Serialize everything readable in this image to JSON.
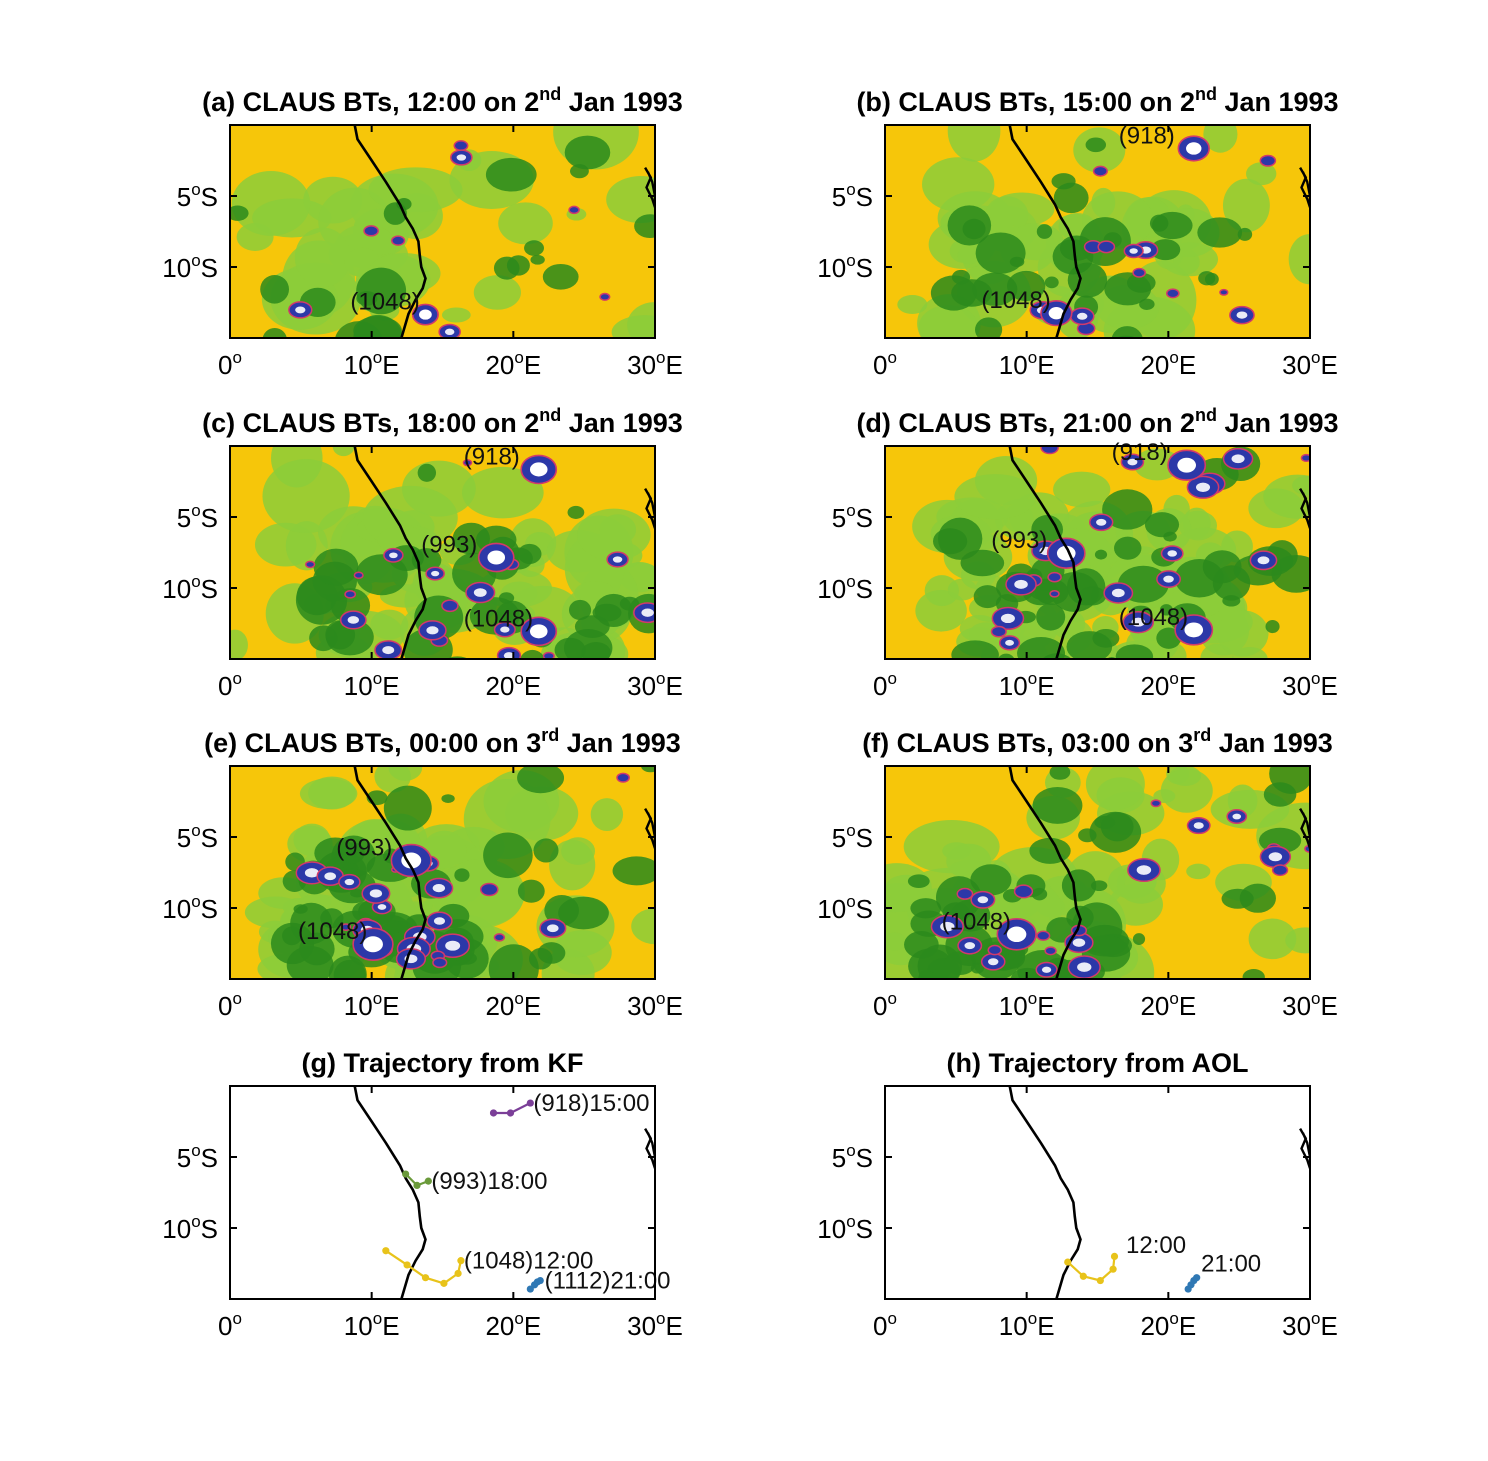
{
  "figure": {
    "panels": [
      {
        "id": "a",
        "title_pre": "(a) CLAUS BTs, 12:00 on 2",
        "title_sup": "nd",
        "title_post": " Jan 1993",
        "kind": "bt",
        "coverage": 0.15,
        "focus": [
          [
            0.12,
            0.9,
            0.5,
            0.9,
            0.25
          ]
        ],
        "labels": [
          {
            "text": "(1048)",
            "lon": 8.5,
            "lat": -13.0
          }
        ]
      },
      {
        "id": "b",
        "title_pre": "(b) CLAUS BTs, 15:00 on 2",
        "title_sup": "nd",
        "title_post": " Jan 1993",
        "kind": "bt",
        "coverage": 0.3,
        "focus": [
          [
            0.4,
            0.88,
            0.5,
            0.7,
            0.6
          ]
        ],
        "labels": [
          {
            "text": "(918)",
            "lon": 16.5,
            "lat": -1.3
          },
          {
            "text": "(1048)",
            "lon": 6.8,
            "lat": -12.9
          }
        ]
      },
      {
        "id": "c",
        "title_pre": "(c) CLAUS BTs, 18:00 on 2",
        "title_sup": "nd",
        "title_post": " Jan 1993",
        "kind": "bt",
        "coverage": 0.42,
        "focus": [
          [
            0.5,
            0.85,
            0.7,
            0.7,
            0.7
          ]
        ],
        "labels": [
          {
            "text": "(918)",
            "lon": 16.5,
            "lat": -1.3
          },
          {
            "text": "(993)",
            "lon": 13.5,
            "lat": -7.5
          },
          {
            "text": "(1048)",
            "lon": 16.5,
            "lat": -12.7
          }
        ]
      },
      {
        "id": "d",
        "title_pre": "(d) CLAUS BTs, 21:00 on 2",
        "title_sup": "nd",
        "title_post": " Jan 1993",
        "kind": "bt",
        "coverage": 0.48,
        "focus": [
          [
            0.45,
            0.75,
            0.5,
            0.6,
            0.8
          ]
        ],
        "labels": [
          {
            "text": "(918)",
            "lon": 16.0,
            "lat": -1.0
          },
          {
            "text": "(993)",
            "lon": 7.5,
            "lat": -7.2
          },
          {
            "text": "(1048)",
            "lon": 16.5,
            "lat": -12.6
          }
        ]
      },
      {
        "id": "e",
        "title_pre": "(e) CLAUS BTs, 00:00 on 3",
        "title_sup": "rd",
        "title_post": " Jan 1993",
        "kind": "bt",
        "coverage": 0.55,
        "focus": [
          [
            0.35,
            0.7,
            0.35,
            0.5,
            0.85
          ]
        ],
        "labels": [
          {
            "text": "(993)",
            "lon": 7.5,
            "lat": -6.3
          },
          {
            "text": "(1048)",
            "lon": 4.8,
            "lat": -12.2
          }
        ]
      },
      {
        "id": "f",
        "title_pre": "(f) CLAUS BTs, 03:00 on 3",
        "title_sup": "rd",
        "title_post": " Jan 1993",
        "kind": "bt",
        "coverage": 0.52,
        "focus": [
          [
            0.3,
            0.8,
            0.4,
            0.45,
            0.85
          ]
        ],
        "labels": [
          {
            "text": "(1048)",
            "lon": 4.0,
            "lat": -11.5
          }
        ]
      },
      {
        "id": "g",
        "title_pre": "(g) Trajectory from KF",
        "title_sup": "",
        "title_post": "",
        "kind": "traj",
        "tracks": [
          {
            "name": "(918)15:00",
            "color": "#7b3f98",
            "points": [
              [
                18.6,
                -1.9
              ],
              [
                19.8,
                -1.9
              ],
              [
                21.2,
                -1.2
              ]
            ],
            "label_lon": 21.2,
            "label_lat": -1.2
          },
          {
            "name": "(993)18:00",
            "color": "#6a9a3a",
            "points": [
              [
                12.4,
                -6.2
              ],
              [
                13.2,
                -7.0
              ],
              [
                14.0,
                -6.7
              ]
            ],
            "label_lon": 14.0,
            "label_lat": -6.7
          },
          {
            "name": "(1048)12:00",
            "color": "#e8c31a",
            "points": [
              [
                11.0,
                -11.6
              ],
              [
                12.5,
                -12.6
              ],
              [
                13.8,
                -13.5
              ],
              [
                15.1,
                -13.9
              ],
              [
                16.1,
                -13.2
              ],
              [
                16.3,
                -12.3
              ]
            ],
            "label_lon": 16.3,
            "label_lat": -12.3
          },
          {
            "name": "(1112)21:00",
            "color": "#2f78b4",
            "points": [
              [
                21.2,
                -14.3
              ],
              [
                21.5,
                -14.0
              ],
              [
                21.7,
                -13.8
              ],
              [
                21.9,
                -13.7
              ]
            ],
            "label_lon": 22.0,
            "label_lat": -13.7
          }
        ]
      },
      {
        "id": "h",
        "title_pre": "(h) Trajectory from AOL",
        "title_sup": "",
        "title_post": "",
        "kind": "traj",
        "tracks": [
          {
            "name": "12:00",
            "color": "#e8c31a",
            "points": [
              [
                12.9,
                -12.4
              ],
              [
                14.0,
                -13.4
              ],
              [
                15.2,
                -13.7
              ],
              [
                16.1,
                -12.9
              ],
              [
                16.2,
                -12.0
              ]
            ],
            "label_lon": 16.8,
            "label_lat": -11.2
          },
          {
            "name": "21:00",
            "color": "#2f78b4",
            "points": [
              [
                21.4,
                -14.3
              ],
              [
                21.6,
                -14.0
              ],
              [
                21.8,
                -13.7
              ],
              [
                22.0,
                -13.5
              ]
            ],
            "label_lon": 22.1,
            "label_lat": -12.5
          }
        ]
      }
    ],
    "axes": {
      "lon_range": [
        0,
        30
      ],
      "lat_range": [
        -15,
        0
      ],
      "xticks": [
        {
          "value": 0,
          "base": "0",
          "sup": "o",
          "suffix": ""
        },
        {
          "value": 10,
          "base": "10",
          "sup": "o",
          "suffix": "E"
        },
        {
          "value": 20,
          "base": "20",
          "sup": "o",
          "suffix": "E"
        },
        {
          "value": 30,
          "base": "30",
          "sup": "o",
          "suffix": "E"
        }
      ],
      "yticks": [
        {
          "value": -5,
          "base": "5",
          "sup": "o",
          "suffix": "S"
        },
        {
          "value": -10,
          "base": "10",
          "sup": "o",
          "suffix": "S"
        }
      ]
    },
    "colors": {
      "clear": "#f6c60a",
      "light_cloud": "#8ccc3a",
      "cloud": "#2b8a1c",
      "deep": "#2c38a8",
      "core": "#ffffff",
      "contour": "#d23a6a",
      "coast": "#000000"
    }
  },
  "chart_data": [
    {
      "type": "heatmap",
      "title": "(a) CLAUS BTs, 12:00 on 2nd Jan 1993",
      "xlabel": "",
      "ylabel": "",
      "xlim": [
        0,
        30
      ],
      "ylim": [
        -15,
        0
      ],
      "annotations": [
        "(1048)"
      ]
    },
    {
      "type": "heatmap",
      "title": "(b) CLAUS BTs, 15:00 on 2nd Jan 1993",
      "xlabel": "",
      "ylabel": "",
      "xlim": [
        0,
        30
      ],
      "ylim": [
        -15,
        0
      ],
      "annotations": [
        "(918)",
        "(1048)"
      ]
    },
    {
      "type": "heatmap",
      "title": "(c) CLAUS BTs, 18:00 on 2nd Jan 1993",
      "xlabel": "",
      "ylabel": "",
      "xlim": [
        0,
        30
      ],
      "ylim": [
        -15,
        0
      ],
      "annotations": [
        "(918)",
        "(993)",
        "(1048)"
      ]
    },
    {
      "type": "heatmap",
      "title": "(d) CLAUS BTs, 21:00 on 2nd Jan 1993",
      "xlabel": "",
      "ylabel": "",
      "xlim": [
        0,
        30
      ],
      "ylim": [
        -15,
        0
      ],
      "annotations": [
        "(918)",
        "(993)",
        "(1048)"
      ]
    },
    {
      "type": "heatmap",
      "title": "(e) CLAUS BTs, 00:00 on 3rd Jan 1993",
      "xlabel": "",
      "ylabel": "",
      "xlim": [
        0,
        30
      ],
      "ylim": [
        -15,
        0
      ],
      "annotations": [
        "(993)",
        "(1048)"
      ]
    },
    {
      "type": "heatmap",
      "title": "(f) CLAUS BTs, 03:00 on 3rd Jan 1993",
      "xlabel": "",
      "ylabel": "",
      "xlim": [
        0,
        30
      ],
      "ylim": [
        -15,
        0
      ],
      "annotations": [
        "(1048)"
      ]
    },
    {
      "type": "line",
      "title": "(g) Trajectory from KF",
      "xlim": [
        0,
        30
      ],
      "ylim": [
        -15,
        0
      ],
      "series": [
        {
          "name": "(918)15:00",
          "x": [
            18.6,
            19.8,
            21.2
          ],
          "y": [
            -1.9,
            -1.9,
            -1.2
          ]
        },
        {
          "name": "(993)18:00",
          "x": [
            12.4,
            13.2,
            14.0
          ],
          "y": [
            -6.2,
            -7.0,
            -6.7
          ]
        },
        {
          "name": "(1048)12:00",
          "x": [
            11.0,
            12.5,
            13.8,
            15.1,
            16.1,
            16.3
          ],
          "y": [
            -11.6,
            -12.6,
            -13.5,
            -13.9,
            -13.2,
            -12.3
          ]
        },
        {
          "name": "(1112)21:00",
          "x": [
            21.2,
            21.5,
            21.7,
            21.9
          ],
          "y": [
            -14.3,
            -14.0,
            -13.8,
            -13.7
          ]
        }
      ]
    },
    {
      "type": "line",
      "title": "(h) Trajectory from AOL",
      "xlim": [
        0,
        30
      ],
      "ylim": [
        -15,
        0
      ],
      "series": [
        {
          "name": "12:00",
          "x": [
            12.9,
            14.0,
            15.2,
            16.1,
            16.2
          ],
          "y": [
            -12.4,
            -13.4,
            -13.7,
            -12.9,
            -12.0
          ]
        },
        {
          "name": "21:00",
          "x": [
            21.4,
            21.6,
            21.8,
            22.0
          ],
          "y": [
            -14.3,
            -14.0,
            -13.7,
            -13.5
          ]
        }
      ]
    }
  ]
}
